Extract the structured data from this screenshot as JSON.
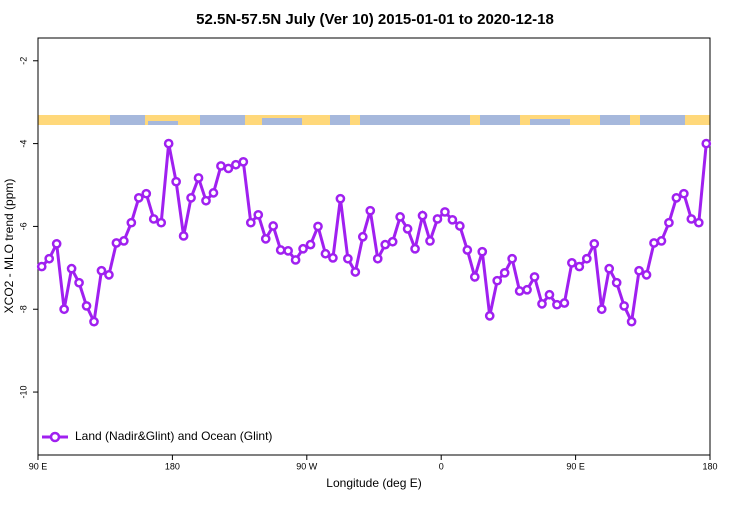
{
  "chart_data": {
    "type": "line",
    "title": "52.5N-57.5N July (Ver 10)   2015-01-01 to 2020-12-18",
    "x_label": "Longitude (deg E)",
    "y_label": "XCO2 - MLO trend (ppm)",
    "xlim": [
      90,
      540
    ],
    "xticks": [
      {
        "value": 90,
        "label": "90 E"
      },
      180,
      {
        "value": 270,
        "label": "90 W"
      },
      {
        "value": 360,
        "label": "0"
      },
      {
        "value": 450,
        "label": "90 E"
      },
      {
        "value": 540,
        "label": "180"
      }
    ],
    "ylim": [
      -11.52,
      -1.45
    ],
    "yticks": [
      -2,
      -4,
      -6,
      -8,
      -10
    ],
    "legend": "bottom-left",
    "x": [
      92.5,
      97.5,
      102.5,
      107.5,
      112.5,
      117.5,
      122.5,
      127.5,
      132.5,
      137.5,
      142.5,
      147.5,
      152.5,
      157.5,
      162.5,
      167.5,
      172.5,
      177.5,
      182.5,
      187.5,
      192.5,
      197.5,
      202.5,
      207.5,
      212.5,
      217.5,
      222.5,
      227.5,
      232.5,
      237.5,
      242.5,
      247.5,
      252.5,
      257.5,
      262.5,
      267.5,
      272.5,
      277.5,
      282.5,
      287.5,
      292.5,
      297.5,
      302.5,
      307.5,
      312.5,
      317.5,
      322.5,
      327.5,
      332.5,
      337.5,
      342.5,
      347.5,
      352.5,
      357.5,
      362.5,
      367.5,
      372.5,
      377.5,
      382.5,
      387.5,
      392.5,
      397.5,
      402.5,
      407.5,
      412.5,
      417.5,
      422.5,
      427.5,
      432.5,
      437.5,
      442.5,
      447.5,
      452.5,
      457.5,
      462.5,
      467.5,
      472.5,
      477.5,
      482.5,
      487.5,
      492.5,
      497.5,
      502.5,
      507.5,
      512.5,
      517.5,
      522.5,
      527.5,
      532.5,
      537.5
    ],
    "series": [
      {
        "name": "Land (Nadir&Glint) and Ocean (Glint)",
        "color": "#a020f0",
        "values": [
          -6.97,
          -6.78,
          -6.42,
          -8.0,
          -7.02,
          -7.36,
          -7.92,
          -8.3,
          -7.07,
          -7.17,
          -6.4,
          -6.35,
          -5.91,
          -5.31,
          -5.21,
          -5.82,
          -5.91,
          -4.0,
          -4.92,
          -6.23,
          -5.31,
          -4.83,
          -5.38,
          -5.19,
          -4.54,
          -4.6,
          -4.51,
          -4.44,
          -5.91,
          -5.72,
          -6.3,
          -5.99,
          -6.57,
          -6.59,
          -6.81,
          -6.54,
          -6.44,
          -6.0,
          -6.66,
          -6.76,
          -5.33,
          -6.78,
          -7.1,
          -6.25,
          -5.62,
          -6.78,
          -6.44,
          -6.37,
          -5.77,
          -6.06,
          -6.54,
          -5.74,
          -6.35,
          -5.82,
          -5.65,
          -5.84,
          -5.99,
          -6.57,
          -7.22,
          -6.61,
          -8.16,
          -7.31,
          -7.12,
          -6.78,
          -7.56,
          -7.53,
          -7.22,
          -7.87,
          -7.65,
          -7.89,
          -7.85,
          -6.88,
          -6.97,
          -6.78,
          -6.42,
          -8.0,
          -7.02,
          -7.36,
          -7.92,
          -8.3,
          -7.07,
          -7.17,
          -6.4,
          -6.35,
          -5.91,
          -5.31,
          -5.21,
          -5.82,
          -5.91,
          -4.0
        ]
      }
    ]
  }
}
